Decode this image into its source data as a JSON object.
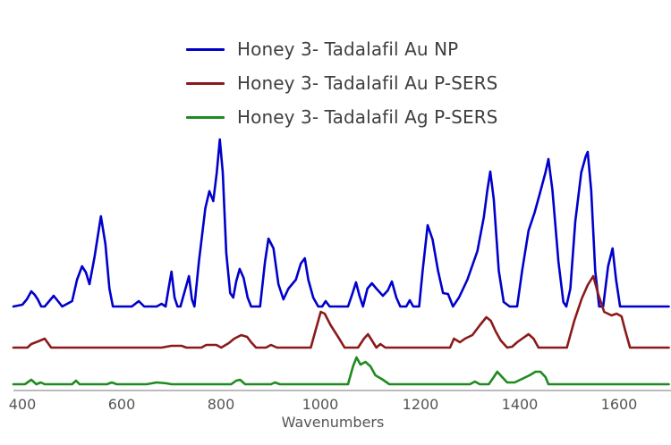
{
  "chart_data": {
    "type": "line",
    "title": "",
    "xlabel": "Wavenumbers",
    "ylabel": "",
    "xlim": [
      382,
      1700
    ],
    "x_ticks": [
      400,
      600,
      800,
      1000,
      1200,
      1400,
      1600
    ],
    "grid": false,
    "y_axis_visible": false,
    "legend_position": "top-center",
    "note": "Stacked spectra with vertical offsets; intensity in arbitrary units above each trace's baseline",
    "series": [
      {
        "name": "Honey 3- Tadalafil Au NP",
        "color": "#0000cc",
        "baseline_offset": 94,
        "points": [
          [
            382,
            0
          ],
          [
            400,
            2
          ],
          [
            409,
            8
          ],
          [
            418,
            17
          ],
          [
            425,
            13
          ],
          [
            431,
            8
          ],
          [
            438,
            0
          ],
          [
            445,
            0
          ],
          [
            463,
            12
          ],
          [
            473,
            5
          ],
          [
            480,
            0
          ],
          [
            500,
            6
          ],
          [
            510,
            30
          ],
          [
            520,
            45
          ],
          [
            528,
            38
          ],
          [
            535,
            25
          ],
          [
            545,
            55
          ],
          [
            558,
            101
          ],
          [
            567,
            70
          ],
          [
            575,
            20
          ],
          [
            582,
            0
          ],
          [
            620,
            0
          ],
          [
            634,
            6
          ],
          [
            645,
            0
          ],
          [
            670,
            0
          ],
          [
            680,
            3
          ],
          [
            688,
            0
          ],
          [
            694,
            20
          ],
          [
            700,
            39
          ],
          [
            706,
            10
          ],
          [
            712,
            0
          ],
          [
            718,
            0
          ],
          [
            728,
            20
          ],
          [
            735,
            34
          ],
          [
            741,
            8
          ],
          [
            746,
            0
          ],
          [
            755,
            50
          ],
          [
            768,
            110
          ],
          [
            776,
            129
          ],
          [
            784,
            118
          ],
          [
            791,
            150
          ],
          [
            797,
            187
          ],
          [
            803,
            150
          ],
          [
            810,
            60
          ],
          [
            818,
            15
          ],
          [
            824,
            10
          ],
          [
            830,
            28
          ],
          [
            837,
            42
          ],
          [
            845,
            32
          ],
          [
            853,
            10
          ],
          [
            860,
            0
          ],
          [
            878,
            0
          ],
          [
            888,
            50
          ],
          [
            895,
            76
          ],
          [
            905,
            65
          ],
          [
            915,
            25
          ],
          [
            925,
            8
          ],
          [
            935,
            20
          ],
          [
            950,
            30
          ],
          [
            960,
            48
          ],
          [
            968,
            54
          ],
          [
            975,
            30
          ],
          [
            985,
            10
          ],
          [
            995,
            0
          ],
          [
            1003,
            0
          ],
          [
            1010,
            6
          ],
          [
            1018,
            0
          ],
          [
            1055,
            0
          ],
          [
            1064,
            15
          ],
          [
            1071,
            27
          ],
          [
            1078,
            12
          ],
          [
            1085,
            0
          ],
          [
            1094,
            20
          ],
          [
            1103,
            26
          ],
          [
            1112,
            20
          ],
          [
            1125,
            12
          ],
          [
            1135,
            18
          ],
          [
            1143,
            28
          ],
          [
            1152,
            10
          ],
          [
            1160,
            0
          ],
          [
            1172,
            0
          ],
          [
            1179,
            7
          ],
          [
            1186,
            0
          ],
          [
            1198,
            0
          ],
          [
            1205,
            40
          ],
          [
            1215,
            91
          ],
          [
            1225,
            75
          ],
          [
            1236,
            40
          ],
          [
            1246,
            15
          ],
          [
            1256,
            14
          ],
          [
            1266,
            0
          ],
          [
            1278,
            10
          ],
          [
            1295,
            30
          ],
          [
            1315,
            62
          ],
          [
            1328,
            100
          ],
          [
            1335,
            130
          ],
          [
            1341,
            151
          ],
          [
            1348,
            120
          ],
          [
            1358,
            40
          ],
          [
            1368,
            5
          ],
          [
            1380,
            0
          ],
          [
            1395,
            0
          ],
          [
            1405,
            40
          ],
          [
            1418,
            85
          ],
          [
            1430,
            105
          ],
          [
            1440,
            125
          ],
          [
            1452,
            150
          ],
          [
            1458,
            165
          ],
          [
            1466,
            130
          ],
          [
            1478,
            50
          ],
          [
            1488,
            5
          ],
          [
            1494,
            0
          ],
          [
            1502,
            20
          ],
          [
            1512,
            95
          ],
          [
            1524,
            150
          ],
          [
            1533,
            168
          ],
          [
            1537,
            173
          ],
          [
            1544,
            130
          ],
          [
            1552,
            40
          ],
          [
            1560,
            0
          ],
          [
            1568,
            0
          ],
          [
            1578,
            45
          ],
          [
            1587,
            65
          ],
          [
            1594,
            30
          ],
          [
            1602,
            0
          ],
          [
            1700,
            0
          ]
        ]
      },
      {
        "name": "Honey 3- Tadalafil Au P-SERS",
        "color": "#8b1a1a",
        "baseline_offset": 48,
        "points": [
          [
            382,
            0
          ],
          [
            410,
            0
          ],
          [
            418,
            4
          ],
          [
            432,
            7
          ],
          [
            445,
            10
          ],
          [
            458,
            0
          ],
          [
            600,
            0
          ],
          [
            680,
            0
          ],
          [
            700,
            2
          ],
          [
            720,
            2
          ],
          [
            730,
            0
          ],
          [
            760,
            0
          ],
          [
            770,
            3
          ],
          [
            790,
            3
          ],
          [
            800,
            0
          ],
          [
            815,
            5
          ],
          [
            826,
            10
          ],
          [
            840,
            14
          ],
          [
            852,
            12
          ],
          [
            860,
            6
          ],
          [
            870,
            0
          ],
          [
            890,
            0
          ],
          [
            900,
            3
          ],
          [
            912,
            0
          ],
          [
            940,
            0
          ],
          [
            958,
            0
          ],
          [
            970,
            0
          ],
          [
            980,
            0
          ],
          [
            990,
            20
          ],
          [
            1000,
            40
          ],
          [
            1008,
            38
          ],
          [
            1020,
            25
          ],
          [
            1035,
            12
          ],
          [
            1048,
            0
          ],
          [
            1060,
            0
          ],
          [
            1075,
            0
          ],
          [
            1087,
            10
          ],
          [
            1095,
            15
          ],
          [
            1103,
            8
          ],
          [
            1112,
            0
          ],
          [
            1120,
            4
          ],
          [
            1130,
            0
          ],
          [
            1260,
            0
          ],
          [
            1268,
            10
          ],
          [
            1280,
            6
          ],
          [
            1290,
            10
          ],
          [
            1305,
            14
          ],
          [
            1320,
            25
          ],
          [
            1333,
            34
          ],
          [
            1342,
            30
          ],
          [
            1352,
            18
          ],
          [
            1362,
            8
          ],
          [
            1375,
            0
          ],
          [
            1385,
            1
          ],
          [
            1395,
            6
          ],
          [
            1405,
            10
          ],
          [
            1418,
            15
          ],
          [
            1428,
            10
          ],
          [
            1438,
            0
          ],
          [
            1460,
            0
          ],
          [
            1495,
            0
          ],
          [
            1510,
            30
          ],
          [
            1525,
            55
          ],
          [
            1537,
            70
          ],
          [
            1548,
            80
          ],
          [
            1558,
            60
          ],
          [
            1570,
            40
          ],
          [
            1585,
            36
          ],
          [
            1595,
            38
          ],
          [
            1605,
            35
          ],
          [
            1612,
            20
          ],
          [
            1622,
            0
          ],
          [
            1700,
            0
          ]
        ]
      },
      {
        "name": "Honey 3- Tadalafil Ag P-SERS",
        "color": "#1f8a1f",
        "baseline_offset": 8,
        "points": [
          [
            382,
            0
          ],
          [
            405,
            0
          ],
          [
            418,
            5
          ],
          [
            428,
            0
          ],
          [
            437,
            2
          ],
          [
            445,
            0
          ],
          [
            500,
            0
          ],
          [
            508,
            4
          ],
          [
            515,
            0
          ],
          [
            570,
            0
          ],
          [
            580,
            2
          ],
          [
            590,
            0
          ],
          [
            650,
            0
          ],
          [
            670,
            2
          ],
          [
            690,
            1
          ],
          [
            700,
            0
          ],
          [
            820,
            0
          ],
          [
            830,
            4
          ],
          [
            838,
            5
          ],
          [
            848,
            0
          ],
          [
            900,
            0
          ],
          [
            908,
            2
          ],
          [
            918,
            0
          ],
          [
            1040,
            0
          ],
          [
            1055,
            0
          ],
          [
            1065,
            20
          ],
          [
            1072,
            30
          ],
          [
            1080,
            22
          ],
          [
            1090,
            25
          ],
          [
            1100,
            20
          ],
          [
            1110,
            10
          ],
          [
            1125,
            5
          ],
          [
            1138,
            0
          ],
          [
            1160,
            0
          ],
          [
            1300,
            0
          ],
          [
            1310,
            3
          ],
          [
            1320,
            0
          ],
          [
            1338,
            0
          ],
          [
            1348,
            8
          ],
          [
            1355,
            14
          ],
          [
            1365,
            8
          ],
          [
            1375,
            2
          ],
          [
            1390,
            2
          ],
          [
            1405,
            6
          ],
          [
            1420,
            10
          ],
          [
            1432,
            14
          ],
          [
            1442,
            14
          ],
          [
            1452,
            8
          ],
          [
            1458,
            0
          ],
          [
            1700,
            0
          ]
        ]
      }
    ]
  },
  "legend": {
    "items": [
      {
        "label": "Honey 3- Tadalafil Au NP",
        "color": "#0000cc"
      },
      {
        "label": "Honey 3- Tadalafil Au P-SERS",
        "color": "#8b1a1a"
      },
      {
        "label": "Honey 3- Tadalafil Ag P-SERS",
        "color": "#1f8a1f"
      }
    ]
  },
  "axis": {
    "x_title": "Wavenumbers",
    "ticks": [
      "400",
      "600",
      "800",
      "1000",
      "1200",
      "1400",
      "1600"
    ]
  }
}
